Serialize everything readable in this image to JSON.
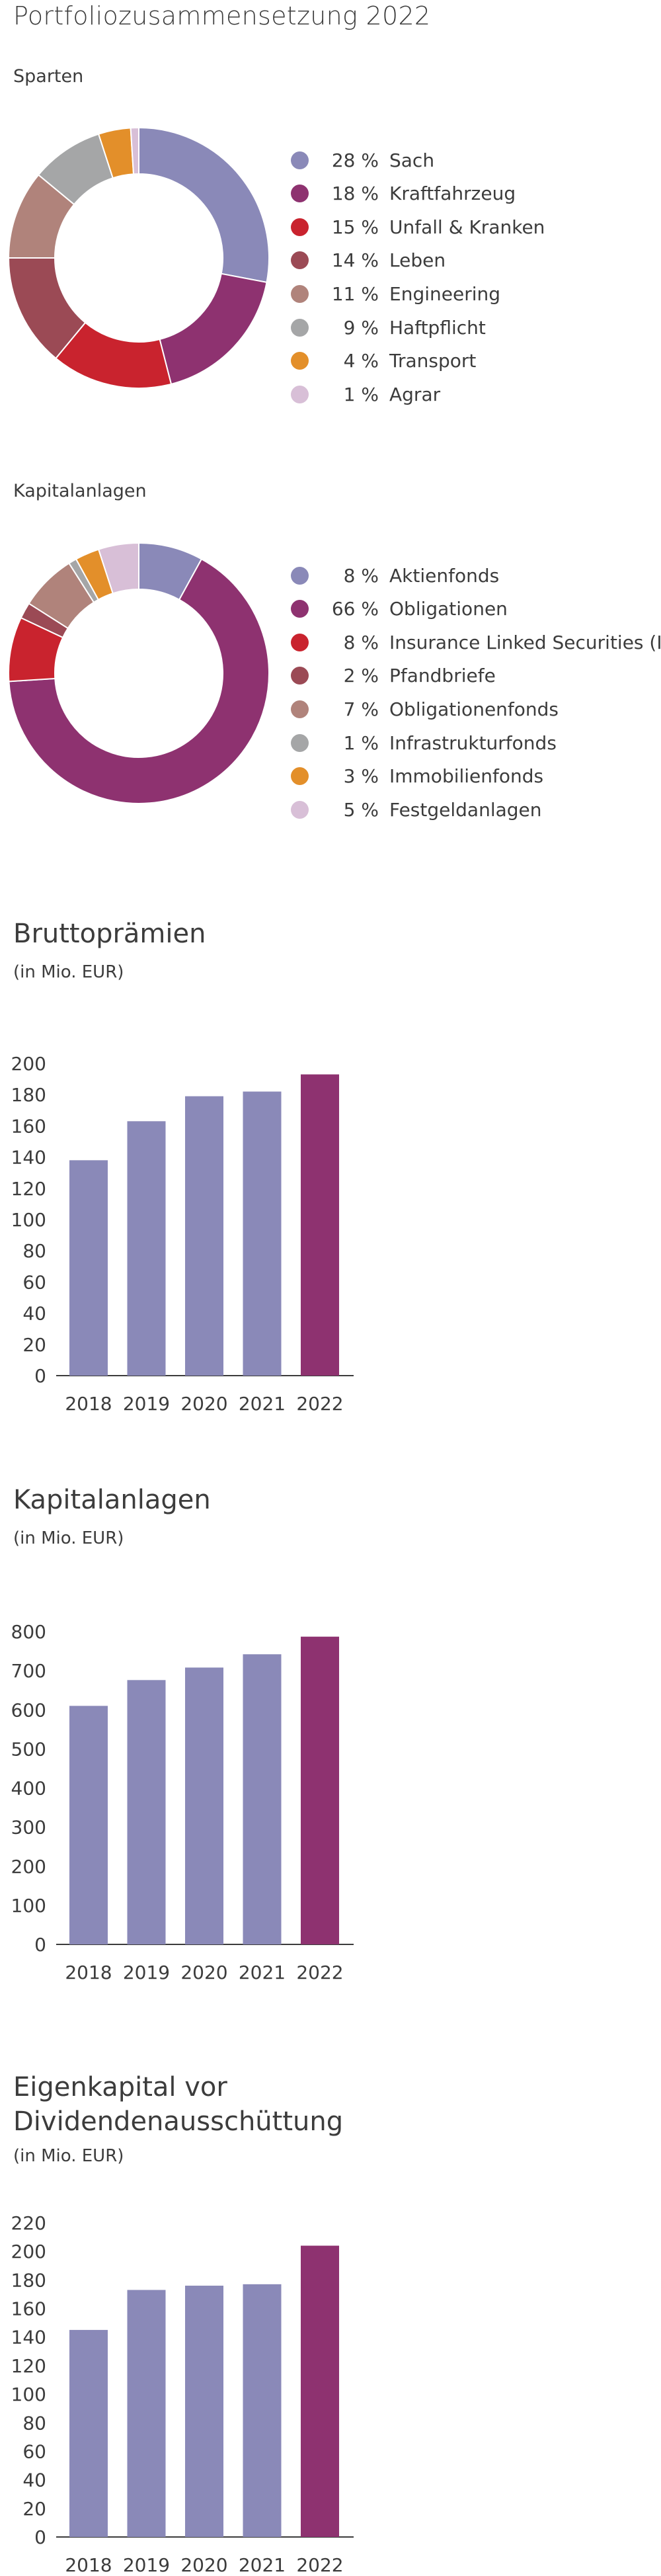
{
  "page_title": "Portfoliozusammensetzung 2022",
  "colors": {
    "bar_past": "#8a89b8",
    "bar_current": "#8e3270",
    "text": "#3c3c3c",
    "axis": "#3c3c3c"
  },
  "chart_data": [
    {
      "type": "pie",
      "subtitle": "Sparten",
      "labels": [
        "Sach",
        "Kraftfahrzeug",
        "Unfall & Kranken",
        "Leben",
        "Engineering",
        "Haftpflicht",
        "Transport",
        "Agrar"
      ],
      "percent_labels": [
        "28 %",
        "18 %",
        "15 %",
        "14 %",
        "11 %",
        "9 %",
        "4 %",
        "1 %"
      ],
      "values": [
        28,
        18,
        15,
        14,
        11,
        9,
        4,
        1
      ],
      "colors": [
        "#8a89b8",
        "#8e3270",
        "#c9232e",
        "#9b4a55",
        "#b0837b",
        "#a5a6a7",
        "#e38f2a",
        "#d8bfd7"
      ]
    },
    {
      "type": "pie",
      "subtitle": "Kapitalanlagen",
      "labels": [
        "Aktienfonds",
        "Obligationen",
        "Insurance Linked Securities (ILS)",
        "Pfandbriefe",
        "Obligationenfonds",
        "Infrastrukturfonds",
        "Immobilienfonds",
        "Festgeldanlagen"
      ],
      "percent_labels": [
        "8 %",
        "66 %",
        "8 %",
        "2 %",
        "7 %",
        "1 %",
        "3 %",
        "5 %"
      ],
      "values": [
        8,
        66,
        8,
        2,
        7,
        1,
        3,
        5
      ],
      "colors": [
        "#8a89b8",
        "#8e3270",
        "#c9232e",
        "#9b4a55",
        "#b0837b",
        "#a5a6a7",
        "#e38f2a",
        "#d8bfd7"
      ]
    },
    {
      "type": "bar",
      "title": "Bruttoprämien",
      "unit": "(in Mio. EUR)",
      "categories": [
        "2018",
        "2019",
        "2020",
        "2021",
        "2022"
      ],
      "values": [
        138,
        163,
        179,
        182,
        193
      ],
      "ylim": [
        0,
        200
      ],
      "yticks": [
        0,
        20,
        40,
        60,
        80,
        100,
        120,
        140,
        160,
        180,
        200
      ],
      "grid": false
    },
    {
      "type": "bar",
      "title": "Kapitalanlagen",
      "unit": "(in Mio. EUR)",
      "categories": [
        "2018",
        "2019",
        "2020",
        "2021",
        "2022"
      ],
      "values": [
        610,
        676,
        708,
        742,
        787
      ],
      "ylim": [
        0,
        800
      ],
      "yticks": [
        0,
        100,
        200,
        300,
        400,
        500,
        600,
        700,
        800
      ],
      "grid": false
    },
    {
      "type": "bar",
      "title": "Eigenkapital vor Dividendenausschüttung",
      "unit": "(in Mio. EUR)",
      "categories": [
        "2018",
        "2019",
        "2020",
        "2021",
        "2022"
      ],
      "values": [
        145,
        173,
        176,
        177,
        204
      ],
      "ylim": [
        0,
        220
      ],
      "yticks": [
        0,
        20,
        40,
        60,
        80,
        100,
        120,
        140,
        160,
        180,
        200,
        220
      ],
      "grid": false
    }
  ]
}
